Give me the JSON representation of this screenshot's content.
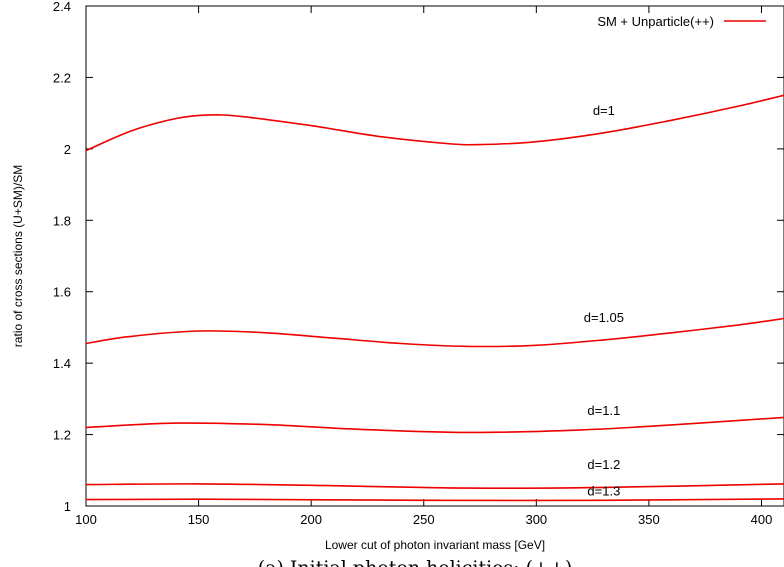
{
  "chart_data": {
    "type": "line",
    "xlabel": "Lower cut of photon invariant mass [GeV]",
    "ylabel": "ratio of cross sections (U+SM)/SM",
    "caption": "(a) Initial photon helicities: (++)",
    "xlim": [
      100,
      410
    ],
    "ylim": [
      1,
      2.4
    ],
    "xticks": [
      100,
      150,
      200,
      250,
      300,
      350,
      400
    ],
    "yticks": [
      1,
      1.2,
      1.4,
      1.6,
      1.8,
      2,
      2.2,
      2.4
    ],
    "xtick_labels": [
      "100",
      "150",
      "200",
      "250",
      "300",
      "350",
      "400"
    ],
    "ytick_labels": [
      "1",
      "1.2",
      "1.4",
      "1.6",
      "1.8",
      "2",
      "2.2",
      "2.4"
    ],
    "legend": {
      "label": "SM + Unparticle(++)",
      "position": "top-right"
    },
    "color": "#ee0000",
    "series": [
      {
        "name": "d=1",
        "label_at": [
          330,
          2.095
        ],
        "x": [
          100,
          120,
          140,
          155,
          170,
          200,
          230,
          260,
          275,
          300,
          330,
          360,
          390,
          410
        ],
        "y": [
          1.995,
          2.05,
          2.085,
          2.095,
          2.09,
          2.065,
          2.035,
          2.015,
          2.012,
          2.02,
          2.045,
          2.08,
          2.12,
          2.15
        ]
      },
      {
        "name": "d=1.05",
        "label_at": [
          330,
          1.515
        ],
        "x": [
          100,
          120,
          150,
          180,
          210,
          240,
          270,
          300,
          330,
          360,
          390,
          410
        ],
        "y": [
          1.455,
          1.475,
          1.49,
          1.485,
          1.47,
          1.455,
          1.447,
          1.45,
          1.465,
          1.485,
          1.507,
          1.525
        ]
      },
      {
        "name": "d=1.1",
        "label_at": [
          330,
          1.255
        ],
        "x": [
          100,
          140,
          180,
          220,
          270,
          320,
          360,
          410
        ],
        "y": [
          1.22,
          1.232,
          1.228,
          1.215,
          1.206,
          1.213,
          1.227,
          1.248
        ]
      },
      {
        "name": "d=1.2",
        "label_at": [
          330,
          1.103
        ],
        "x": [
          100,
          150,
          200,
          270,
          330,
          410
        ],
        "y": [
          1.06,
          1.062,
          1.058,
          1.05,
          1.052,
          1.062
        ]
      },
      {
        "name": "d=1.3",
        "label_at": [
          330,
          1.03
        ],
        "x": [
          100,
          150,
          250,
          330,
          410
        ],
        "y": [
          1.018,
          1.019,
          1.016,
          1.016,
          1.02
        ]
      }
    ]
  }
}
